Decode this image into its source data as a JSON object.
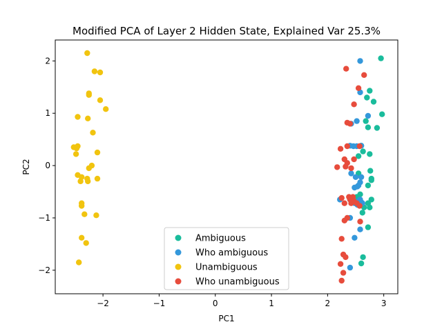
{
  "chart_data": {
    "type": "scatter",
    "title": "Modified PCA of Layer 2 Hidden State, Explained Var 25.3%",
    "xlabel": "PC1",
    "ylabel": "PC2",
    "xlim": [
      -2.85,
      3.25
    ],
    "ylim": [
      -2.45,
      2.4
    ],
    "xticks": [
      -2,
      -1,
      0,
      1,
      2,
      3
    ],
    "xtick_labels": [
      "−2",
      "−1",
      "0",
      "1",
      "2",
      "3"
    ],
    "yticks": [
      -2,
      -1,
      0,
      1,
      2
    ],
    "ytick_labels": [
      "−2",
      "−1",
      "0",
      "1",
      "2"
    ],
    "grid": false,
    "legend_position": "bottom-center",
    "series": [
      {
        "name": "Ambiguous",
        "color": "#1abc9c",
        "points": [
          [
            2.95,
            2.05
          ],
          [
            2.75,
            1.43
          ],
          [
            2.7,
            1.3
          ],
          [
            2.82,
            1.22
          ],
          [
            2.68,
            0.85
          ],
          [
            2.97,
            0.98
          ],
          [
            2.72,
            0.73
          ],
          [
            2.88,
            0.72
          ],
          [
            2.6,
            0.38
          ],
          [
            2.63,
            0.27
          ],
          [
            2.75,
            0.22
          ],
          [
            2.55,
            0.18
          ],
          [
            2.76,
            -0.1
          ],
          [
            2.55,
            -0.15
          ],
          [
            2.78,
            -0.25
          ],
          [
            2.78,
            -0.28
          ],
          [
            2.72,
            -0.38
          ],
          [
            2.58,
            -0.55
          ],
          [
            2.52,
            -0.6
          ],
          [
            2.78,
            -0.65
          ],
          [
            2.72,
            -0.72
          ],
          [
            2.65,
            -0.8
          ],
          [
            2.75,
            -0.8
          ],
          [
            2.62,
            -0.9
          ],
          [
            2.72,
            -1.18
          ],
          [
            2.63,
            -1.75
          ],
          [
            2.6,
            -1.87
          ]
        ]
      },
      {
        "name": "Who ambiguous",
        "color": "#3498db",
        "points": [
          [
            2.58,
            2.0
          ],
          [
            2.58,
            1.4
          ],
          [
            2.72,
            0.95
          ],
          [
            2.52,
            0.85
          ],
          [
            2.42,
            0.8
          ],
          [
            2.4,
            0.38
          ],
          [
            2.46,
            0.37
          ],
          [
            2.52,
            0.37
          ],
          [
            2.6,
            0.38
          ],
          [
            2.42,
            -0.15
          ],
          [
            2.5,
            -0.22
          ],
          [
            2.6,
            -0.22
          ],
          [
            2.55,
            -0.38
          ],
          [
            2.58,
            -0.32
          ],
          [
            2.48,
            -0.42
          ],
          [
            2.53,
            -0.4
          ],
          [
            2.22,
            -0.65
          ],
          [
            2.58,
            -0.65
          ],
          [
            2.55,
            -0.68
          ],
          [
            2.6,
            -0.7
          ],
          [
            2.5,
            -0.7
          ],
          [
            2.48,
            -0.72
          ],
          [
            2.53,
            -0.75
          ],
          [
            2.6,
            -0.72
          ],
          [
            2.58,
            -0.75
          ],
          [
            2.62,
            -0.72
          ],
          [
            2.45,
            -0.62
          ],
          [
            2.4,
            -0.65
          ],
          [
            2.4,
            -1.0
          ],
          [
            2.58,
            -1.22
          ],
          [
            2.48,
            -1.38
          ],
          [
            2.4,
            -1.95
          ]
        ]
      },
      {
        "name": "Unambiguous",
        "color": "#f1c40f",
        "points": [
          [
            -2.28,
            2.15
          ],
          [
            -2.15,
            1.8
          ],
          [
            -2.05,
            1.78
          ],
          [
            -2.25,
            1.38
          ],
          [
            -2.25,
            1.35
          ],
          [
            -2.05,
            1.25
          ],
          [
            -1.95,
            1.08
          ],
          [
            -2.45,
            0.93
          ],
          [
            -2.27,
            0.9
          ],
          [
            -2.18,
            0.63
          ],
          [
            -2.45,
            0.37
          ],
          [
            -2.52,
            0.35
          ],
          [
            -2.47,
            0.33
          ],
          [
            -2.1,
            0.25
          ],
          [
            -2.48,
            0.22
          ],
          [
            -2.2,
            0.0
          ],
          [
            -2.25,
            -0.05
          ],
          [
            -2.45,
            -0.18
          ],
          [
            -2.38,
            -0.22
          ],
          [
            -2.28,
            -0.25
          ],
          [
            -2.1,
            -0.25
          ],
          [
            -2.4,
            -0.3
          ],
          [
            -2.27,
            -0.3
          ],
          [
            -2.38,
            -0.72
          ],
          [
            -2.38,
            -0.77
          ],
          [
            -2.33,
            -0.93
          ],
          [
            -2.12,
            -0.95
          ],
          [
            -2.38,
            -1.38
          ],
          [
            -2.3,
            -1.48
          ],
          [
            -2.43,
            -1.85
          ]
        ]
      },
      {
        "name": "Who unambiguous",
        "color": "#e74c3c",
        "points": [
          [
            2.33,
            1.85
          ],
          [
            2.65,
            1.73
          ],
          [
            2.55,
            1.48
          ],
          [
            2.47,
            1.17
          ],
          [
            2.35,
            0.82
          ],
          [
            2.4,
            0.8
          ],
          [
            2.57,
            0.37
          ],
          [
            2.23,
            0.32
          ],
          [
            2.35,
            0.37
          ],
          [
            2.3,
            0.12
          ],
          [
            2.47,
            0.12
          ],
          [
            2.35,
            0.05
          ],
          [
            2.32,
            -0.02
          ],
          [
            2.17,
            -0.03
          ],
          [
            2.42,
            -0.05
          ],
          [
            2.25,
            -0.62
          ],
          [
            2.38,
            -0.6
          ],
          [
            2.45,
            -0.6
          ],
          [
            2.3,
            -0.72
          ],
          [
            2.4,
            -0.65
          ],
          [
            2.47,
            -0.68
          ],
          [
            2.52,
            -0.72
          ],
          [
            2.42,
            -0.72
          ],
          [
            2.57,
            -0.77
          ],
          [
            2.3,
            -1.05
          ],
          [
            2.35,
            -1.0
          ],
          [
            2.58,
            -1.07
          ],
          [
            2.25,
            -1.4
          ],
          [
            2.28,
            -1.7
          ],
          [
            2.32,
            -1.75
          ],
          [
            2.23,
            -1.88
          ],
          [
            2.28,
            -2.05
          ],
          [
            2.25,
            -2.2
          ]
        ]
      }
    ]
  }
}
